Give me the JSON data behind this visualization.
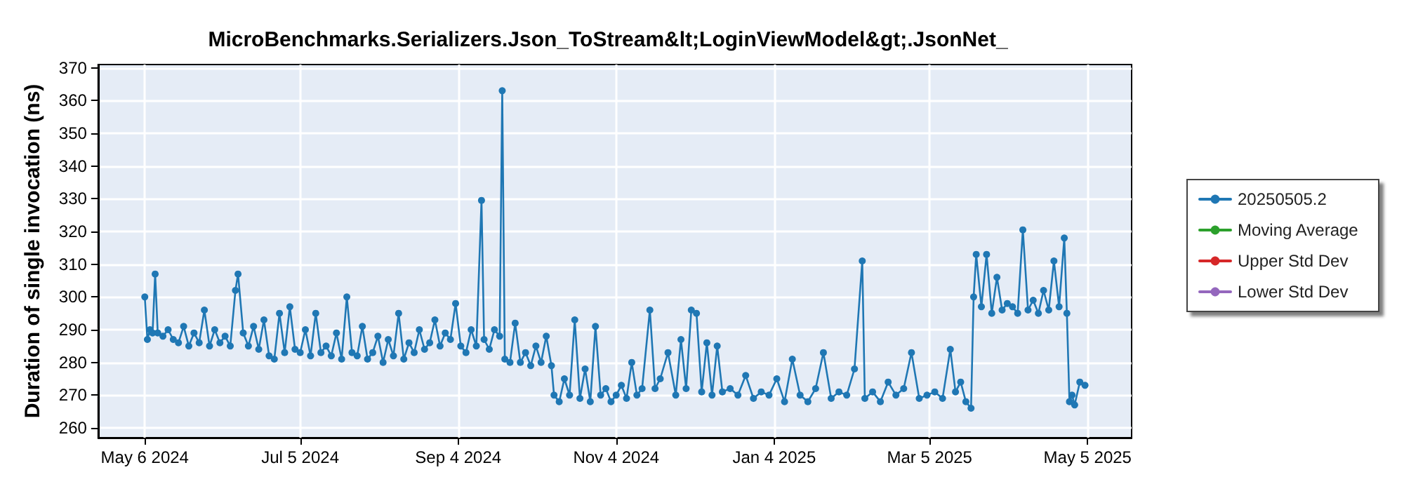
{
  "chart_data": {
    "type": "line",
    "title": "MicroBenchmarks.Serializers.Json_ToStream&lt;LoginViewModel&gt;.JsonNet_",
    "ylabel": "Duration of single invocation (ns)",
    "xlim": [
      "2024-04-18",
      "2025-05-22"
    ],
    "xticks": [
      {
        "value": "2024-05-06",
        "label": "May 6 2024"
      },
      {
        "value": "2024-07-05",
        "label": "Jul 5 2024"
      },
      {
        "value": "2024-09-04",
        "label": "Sep 4 2024"
      },
      {
        "value": "2024-11-04",
        "label": "Nov 4 2024"
      },
      {
        "value": "2025-01-04",
        "label": "Jan 4 2025"
      },
      {
        "value": "2025-03-05",
        "label": "Mar 5 2025"
      },
      {
        "value": "2025-05-05",
        "label": "May 5 2025"
      }
    ],
    "ylim": [
      257,
      371
    ],
    "yticks": [
      260,
      270,
      280,
      290,
      300,
      310,
      320,
      330,
      340,
      350,
      360,
      370
    ],
    "grid": true,
    "legend": "right",
    "marker": "circle",
    "line_style": "solid",
    "series": [
      {
        "name": "20250505.2",
        "color": "#1f77b4",
        "x": [
          "2024-05-06",
          "2024-05-07",
          "2024-05-08",
          "2024-05-09",
          "2024-05-10",
          "2024-05-11",
          "2024-05-13",
          "2024-05-15",
          "2024-05-17",
          "2024-05-19",
          "2024-05-21",
          "2024-05-23",
          "2024-05-25",
          "2024-05-27",
          "2024-05-29",
          "2024-05-31",
          "2024-06-02",
          "2024-06-04",
          "2024-06-06",
          "2024-06-08",
          "2024-06-10",
          "2024-06-11",
          "2024-06-13",
          "2024-06-15",
          "2024-06-17",
          "2024-06-19",
          "2024-06-21",
          "2024-06-23",
          "2024-06-25",
          "2024-06-27",
          "2024-06-29",
          "2024-07-01",
          "2024-07-03",
          "2024-07-05",
          "2024-07-07",
          "2024-07-09",
          "2024-07-11",
          "2024-07-13",
          "2024-07-15",
          "2024-07-17",
          "2024-07-19",
          "2024-07-21",
          "2024-07-23",
          "2024-07-25",
          "2024-07-27",
          "2024-07-29",
          "2024-07-31",
          "2024-08-02",
          "2024-08-04",
          "2024-08-06",
          "2024-08-08",
          "2024-08-10",
          "2024-08-12",
          "2024-08-14",
          "2024-08-16",
          "2024-08-18",
          "2024-08-20",
          "2024-08-22",
          "2024-08-24",
          "2024-08-26",
          "2024-08-28",
          "2024-08-30",
          "2024-09-01",
          "2024-09-03",
          "2024-09-05",
          "2024-09-07",
          "2024-09-09",
          "2024-09-11",
          "2024-09-13",
          "2024-09-14",
          "2024-09-16",
          "2024-09-18",
          "2024-09-20",
          "2024-09-21",
          "2024-09-22",
          "2024-09-24",
          "2024-09-26",
          "2024-09-28",
          "2024-09-30",
          "2024-10-02",
          "2024-10-04",
          "2024-10-06",
          "2024-10-08",
          "2024-10-10",
          "2024-10-11",
          "2024-10-13",
          "2024-10-15",
          "2024-10-17",
          "2024-10-19",
          "2024-10-21",
          "2024-10-23",
          "2024-10-25",
          "2024-10-27",
          "2024-10-29",
          "2024-10-31",
          "2024-11-02",
          "2024-11-04",
          "2024-11-06",
          "2024-11-08",
          "2024-11-10",
          "2024-11-12",
          "2024-11-14",
          "2024-11-17",
          "2024-11-19",
          "2024-11-21",
          "2024-11-24",
          "2024-11-27",
          "2024-11-29",
          "2024-12-01",
          "2024-12-03",
          "2024-12-05",
          "2024-12-07",
          "2024-12-09",
          "2024-12-11",
          "2024-12-13",
          "2024-12-15",
          "2024-12-18",
          "2024-12-21",
          "2024-12-24",
          "2024-12-27",
          "2024-12-30",
          "2025-01-02",
          "2025-01-05",
          "2025-01-08",
          "2025-01-11",
          "2025-01-14",
          "2025-01-17",
          "2025-01-20",
          "2025-01-23",
          "2025-01-26",
          "2025-01-29",
          "2025-02-01",
          "2025-02-04",
          "2025-02-07",
          "2025-02-08",
          "2025-02-11",
          "2025-02-14",
          "2025-02-17",
          "2025-02-20",
          "2025-02-23",
          "2025-02-26",
          "2025-03-01",
          "2025-03-04",
          "2025-03-07",
          "2025-03-10",
          "2025-03-13",
          "2025-03-15",
          "2025-03-17",
          "2025-03-19",
          "2025-03-21",
          "2025-03-22",
          "2025-03-23",
          "2025-03-25",
          "2025-03-27",
          "2025-03-29",
          "2025-03-31",
          "2025-04-02",
          "2025-04-04",
          "2025-04-06",
          "2025-04-08",
          "2025-04-10",
          "2025-04-12",
          "2025-04-14",
          "2025-04-16",
          "2025-04-18",
          "2025-04-20",
          "2025-04-22",
          "2025-04-24",
          "2025-04-26",
          "2025-04-27",
          "2025-04-28",
          "2025-04-29",
          "2025-04-30",
          "2025-05-02",
          "2025-05-04"
        ],
        "values": [
          300,
          287,
          290,
          289,
          307,
          289,
          288,
          290,
          287,
          286,
          291,
          285,
          289,
          286,
          296,
          285,
          290,
          286,
          288,
          285,
          302,
          307,
          289,
          285,
          291,
          284,
          293,
          282,
          281,
          295,
          283,
          297,
          284,
          283,
          290,
          282,
          295,
          283,
          285,
          282,
          289,
          281,
          300,
          283,
          282,
          291,
          281,
          283,
          288,
          280,
          287,
          282,
          295,
          281,
          286,
          283,
          290,
          284,
          286,
          293,
          285,
          289,
          287,
          298,
          285,
          283,
          290,
          285,
          329.5,
          287,
          284,
          290,
          288,
          363,
          281,
          280,
          292,
          280,
          283,
          279,
          285,
          280,
          288,
          279,
          270,
          268,
          275,
          270,
          293,
          269,
          278,
          268,
          291,
          270,
          272,
          268,
          270,
          273,
          269,
          280,
          270,
          272,
          296,
          272,
          275,
          283,
          270,
          287,
          272,
          296,
          295,
          271,
          286,
          270,
          285,
          271,
          272,
          270,
          276,
          269,
          271,
          270,
          275,
          268,
          281,
          270,
          268,
          272,
          283,
          269,
          271,
          270,
          278,
          311,
          269,
          271,
          268,
          274,
          270,
          272,
          283,
          269,
          270,
          271,
          269,
          284,
          271,
          274,
          268,
          266,
          300,
          313,
          297,
          313,
          295,
          306,
          296,
          298,
          297,
          295,
          320.5,
          296,
          299,
          295,
          302,
          296,
          311,
          297,
          318,
          295,
          268,
          270,
          267,
          274,
          273
        ]
      },
      {
        "name": "Moving Average",
        "color": "#2ca02c"
      },
      {
        "name": "Upper Std Dev",
        "color": "#d62728"
      },
      {
        "name": "Lower Std Dev",
        "color": "#9467bd"
      }
    ]
  }
}
